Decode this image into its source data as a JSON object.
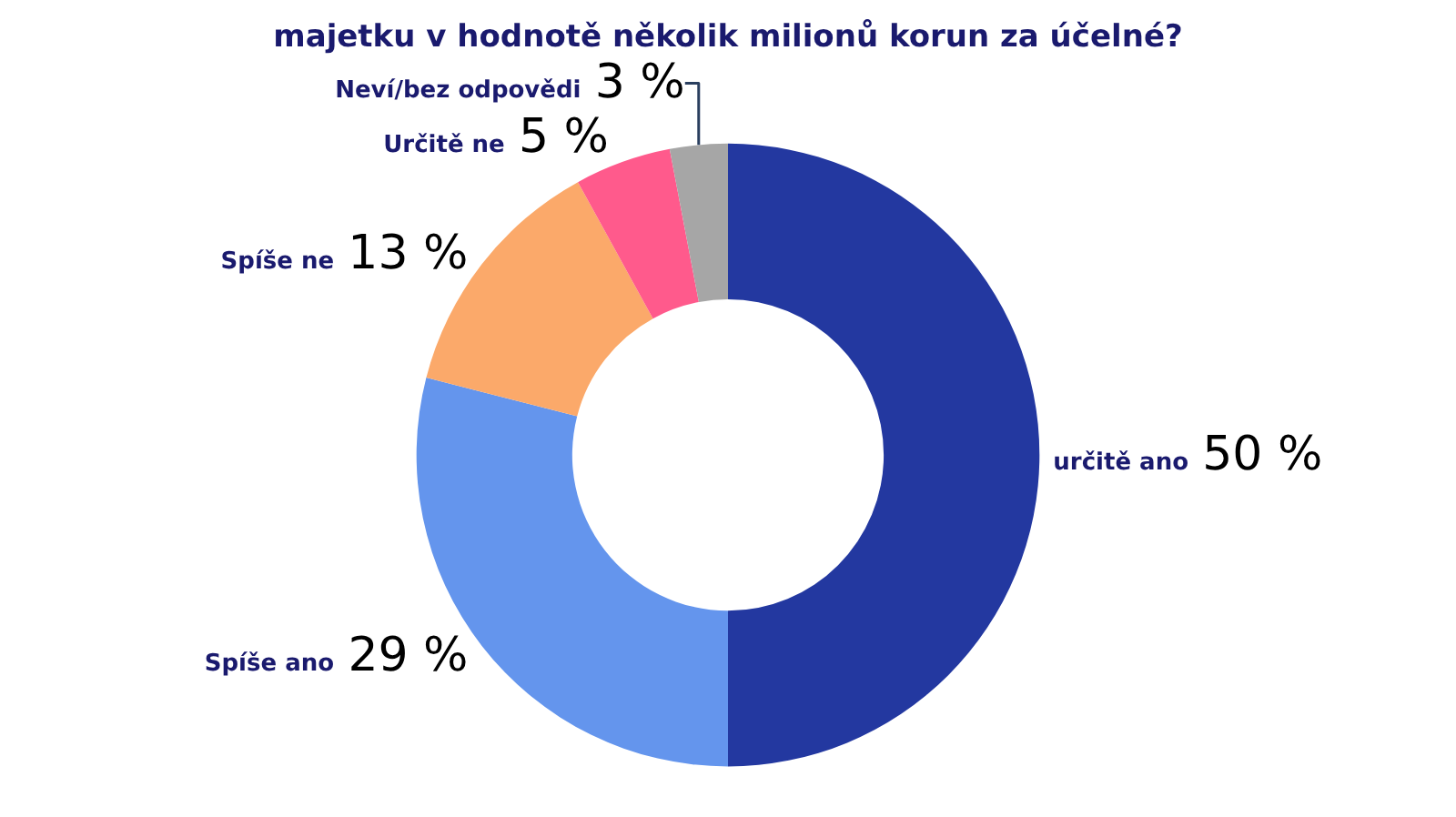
{
  "chart_data": {
    "type": "donut",
    "title": "majetku v hodnotě několik milionů korun za účelné?",
    "categories": [
      "určitě ano",
      "Spíše ano",
      "Spíše ne",
      "Určitě ne",
      "Neví/bez odpovědi"
    ],
    "values": [
      50,
      29,
      13,
      5,
      3
    ],
    "colors": [
      "#2338a0",
      "#6495ed",
      "#fba96a",
      "#ff5a8c",
      "#a6a6a6"
    ],
    "value_labels": [
      "50 %",
      "29 %",
      "13 %",
      "5 %",
      "3 %"
    ],
    "legend": false
  }
}
